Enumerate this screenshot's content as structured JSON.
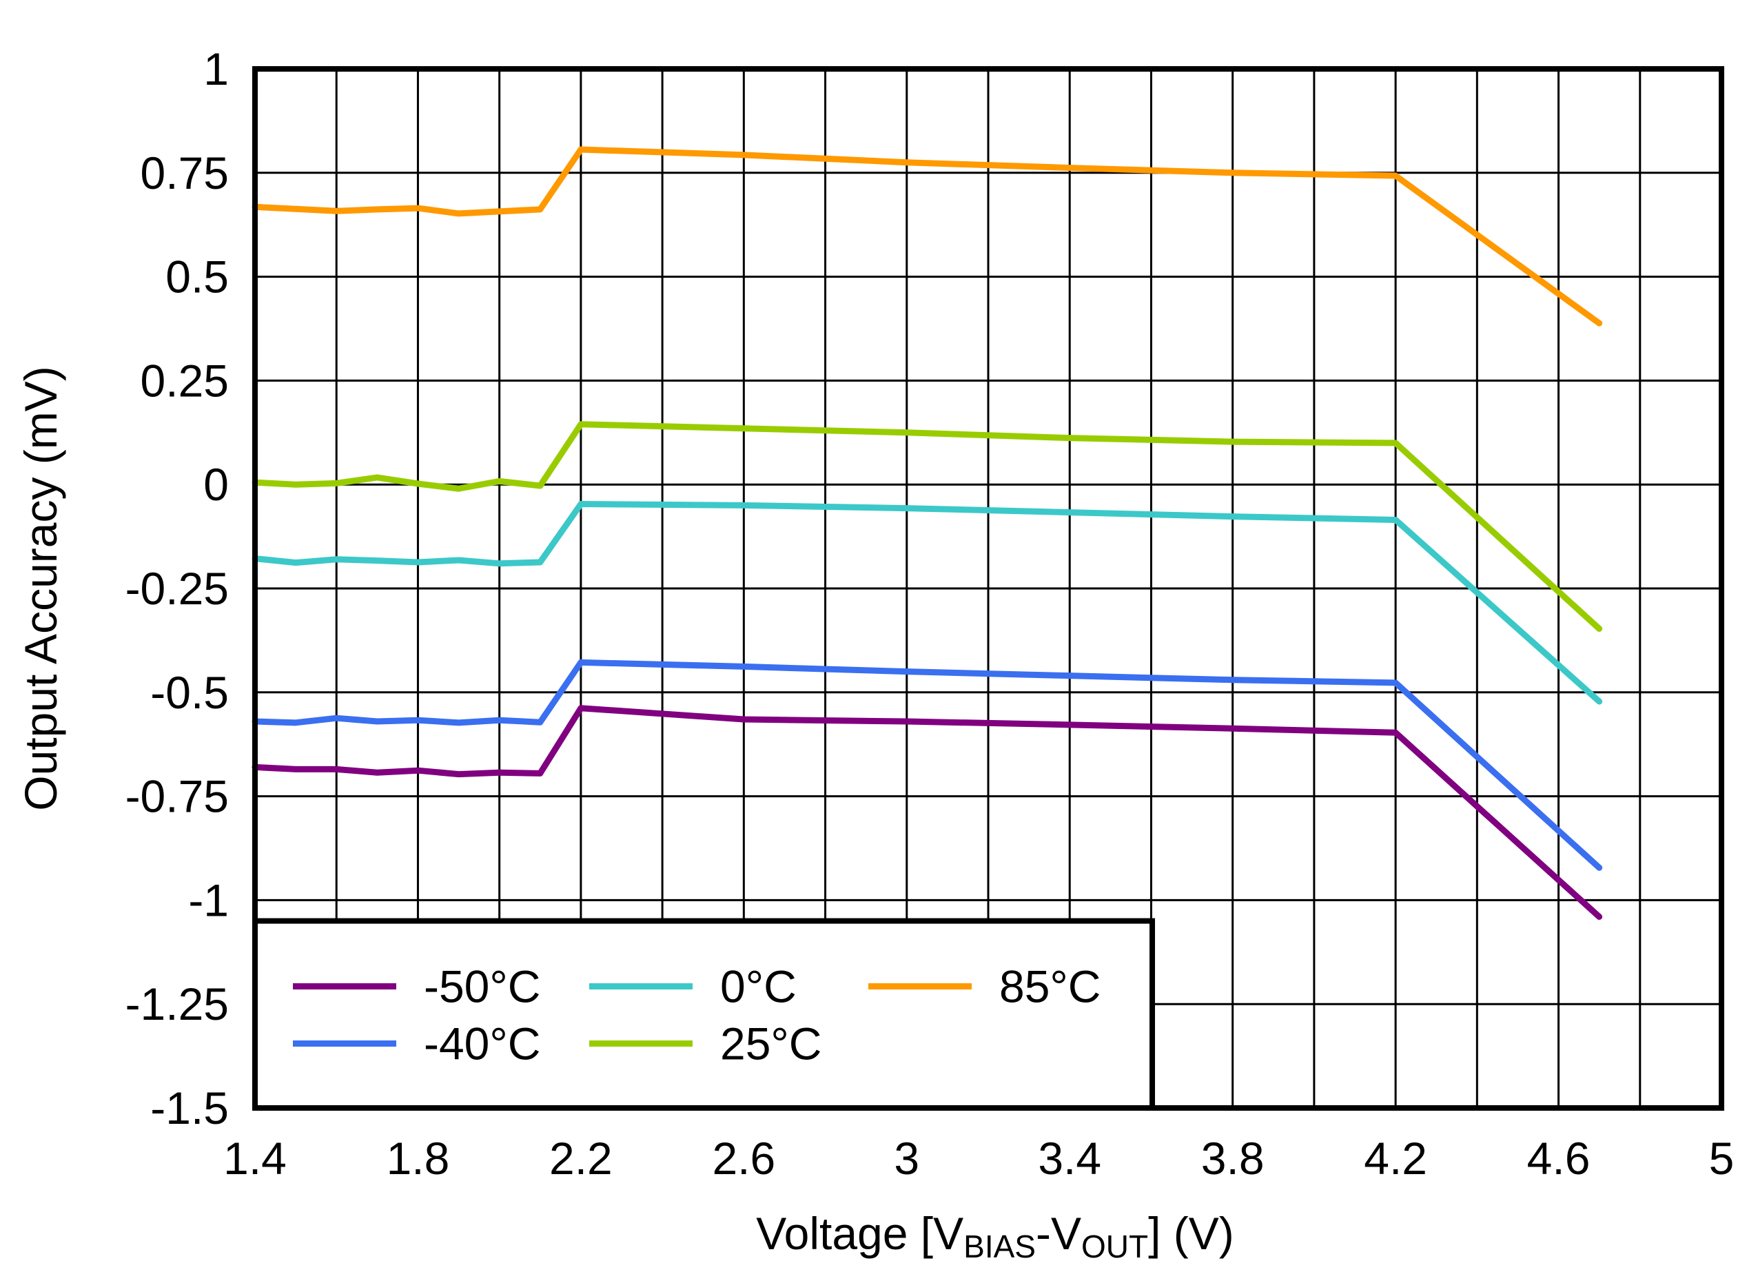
{
  "chart_data": {
    "type": "line",
    "title": "",
    "xlabel": {
      "prefix": "Voltage [V",
      "sub1": "BIAS",
      "mid": "-V",
      "sub2": "OUT",
      "suffix": "] (V)"
    },
    "ylabel": "Output Accuracy (mV)",
    "xlim": [
      1.4,
      5.0
    ],
    "ylim": [
      -1.5,
      1.0
    ],
    "x_ticks": [
      1.4,
      1.8,
      2.2,
      2.6,
      3.0,
      3.4,
      3.8,
      4.2,
      4.6,
      5.0
    ],
    "x_tick_labels": [
      "1.4",
      "1.8",
      "2.2",
      "2.6",
      "3",
      "3.4",
      "3.8",
      "4.2",
      "4.6",
      "5"
    ],
    "x_grid_step": 0.2,
    "y_ticks": [
      1.0,
      0.75,
      0.5,
      0.25,
      0.0,
      -0.25,
      -0.5,
      -0.75,
      -1.0,
      -1.25,
      -1.5
    ],
    "y_tick_labels": [
      "1",
      "0.75",
      "0.5",
      "0.25",
      "0",
      "-0.25",
      "-0.5",
      "-0.75",
      "-1",
      "-1.25",
      "-1.5"
    ],
    "grid": true,
    "legend_position": "bottom-left",
    "x": [
      1.4,
      1.5,
      1.6,
      1.7,
      1.8,
      1.9,
      2.0,
      2.1,
      2.2,
      2.6,
      3.0,
      3.4,
      3.8,
      4.2,
      4.7
    ],
    "series": [
      {
        "name": "-50°C",
        "color": "#800080",
        "values": [
          -0.68,
          -0.685,
          -0.685,
          -0.693,
          -0.688,
          -0.697,
          -0.693,
          -0.695,
          -0.538,
          -0.565,
          -0.57,
          -0.578,
          -0.587,
          -0.597,
          -1.04
        ]
      },
      {
        "name": "-40°C",
        "color": "#3A6FF0",
        "values": [
          -0.57,
          -0.573,
          -0.562,
          -0.57,
          -0.567,
          -0.573,
          -0.567,
          -0.572,
          -0.428,
          -0.438,
          -0.45,
          -0.46,
          -0.47,
          -0.477,
          -0.922
        ]
      },
      {
        "name": "0°C",
        "color": "#3CC8C8",
        "values": [
          -0.178,
          -0.188,
          -0.18,
          -0.183,
          -0.187,
          -0.182,
          -0.19,
          -0.187,
          -0.047,
          -0.05,
          -0.057,
          -0.067,
          -0.077,
          -0.085,
          -0.522
        ]
      },
      {
        "name": "25°C",
        "color": "#99CC00",
        "values": [
          0.005,
          0.0,
          0.003,
          0.017,
          0.002,
          -0.01,
          0.008,
          -0.003,
          0.145,
          0.135,
          0.125,
          0.112,
          0.103,
          0.1,
          -0.347
        ]
      },
      {
        "name": "85°C",
        "color": "#FF9900",
        "values": [
          0.668,
          0.663,
          0.658,
          0.662,
          0.665,
          0.652,
          0.657,
          0.662,
          0.806,
          0.793,
          0.775,
          0.762,
          0.75,
          0.743,
          0.388
        ]
      }
    ]
  }
}
